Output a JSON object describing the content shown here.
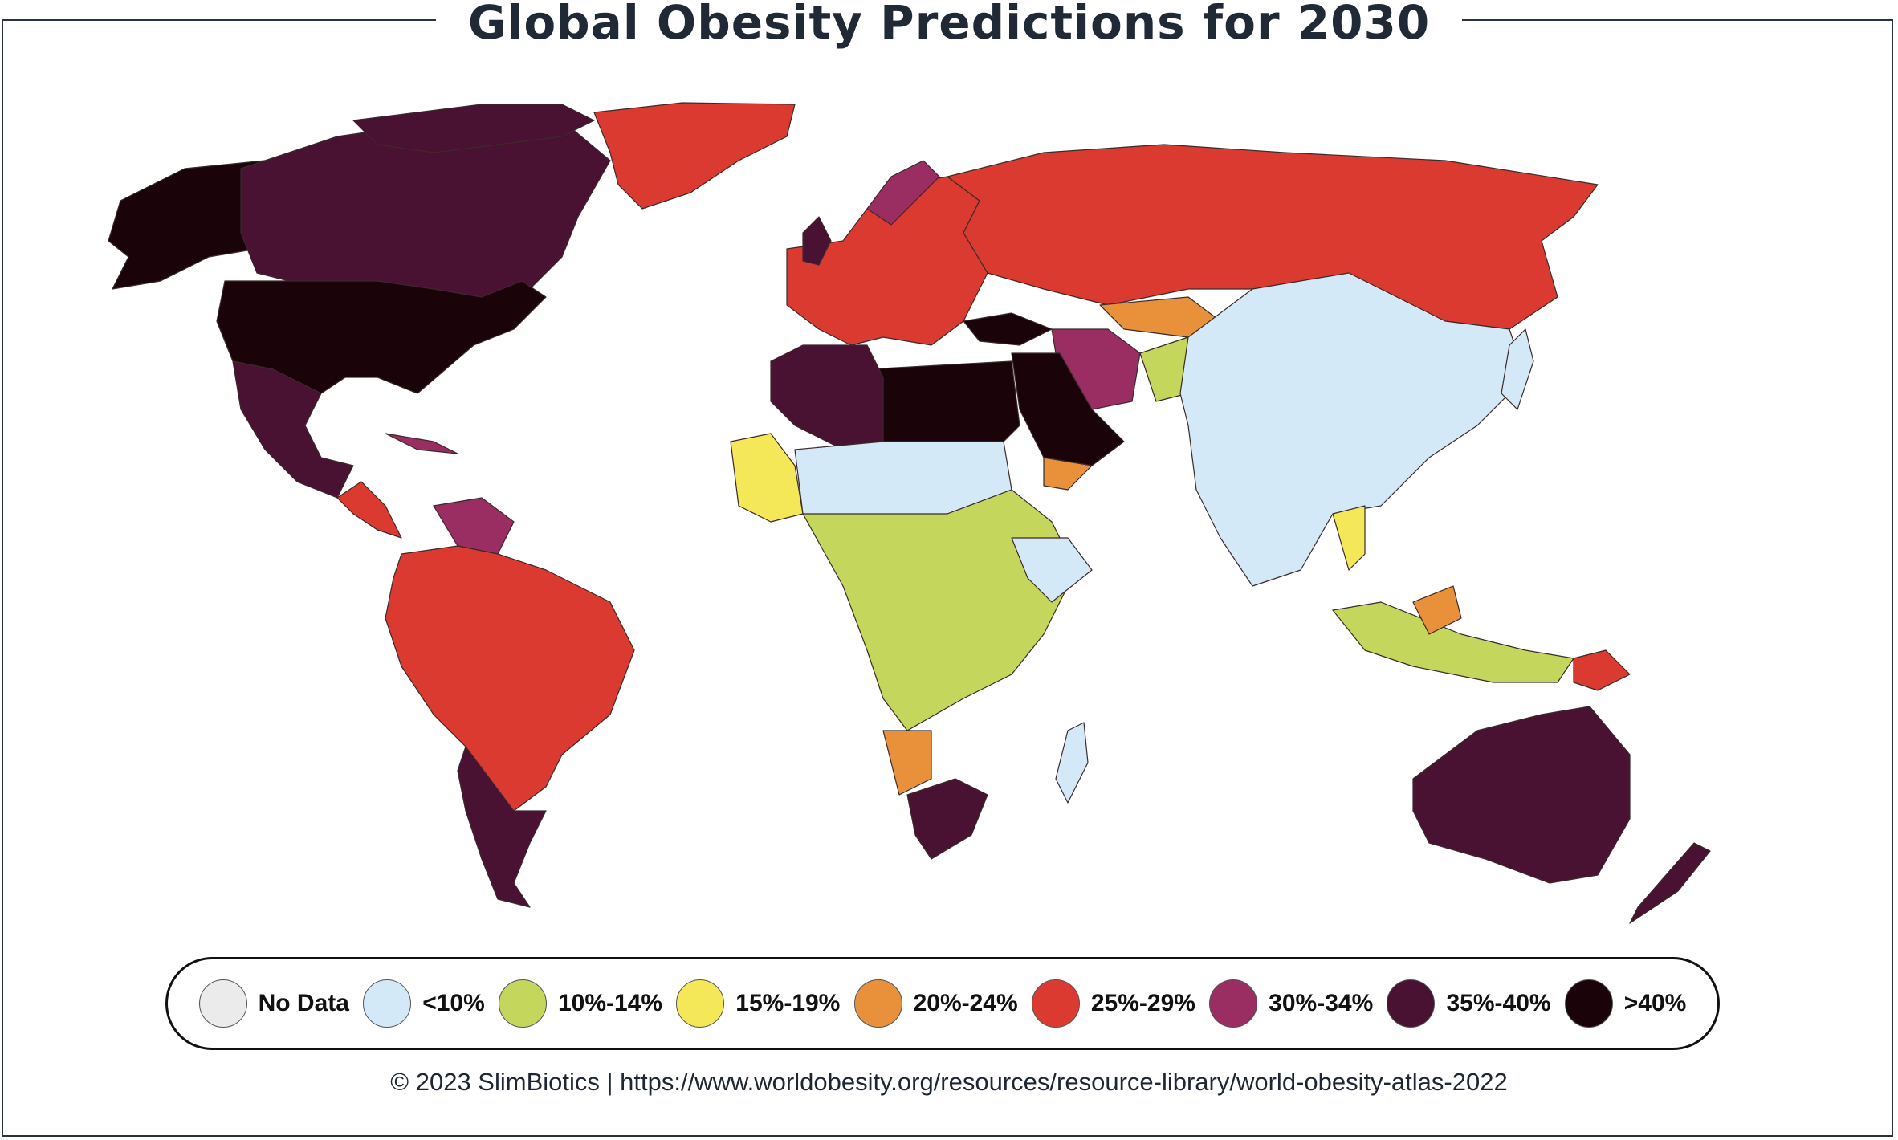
{
  "title": "Global Obesity Predictions for 2030",
  "footer": "© 2023 SlimBiotics | https://www.worldobesity.org/resources/resource-library/world-obesity-atlas-2022",
  "legend": [
    {
      "label": "No Data",
      "color": "#ebebeb"
    },
    {
      "label": "<10%",
      "color": "#d4e9f7"
    },
    {
      "label": "10%-14%",
      "color": "#c4d65c"
    },
    {
      "label": "15%-19%",
      "color": "#f5e858"
    },
    {
      "label": "20%-24%",
      "color": "#e8903a"
    },
    {
      "label": "25%-29%",
      "color": "#db3a30"
    },
    {
      "label": "30%-34%",
      "color": "#9a2d62"
    },
    {
      "label": "35%-40%",
      "color": "#4a1232"
    },
    {
      "label": ">40%",
      "color": "#1a0409"
    }
  ]
}
